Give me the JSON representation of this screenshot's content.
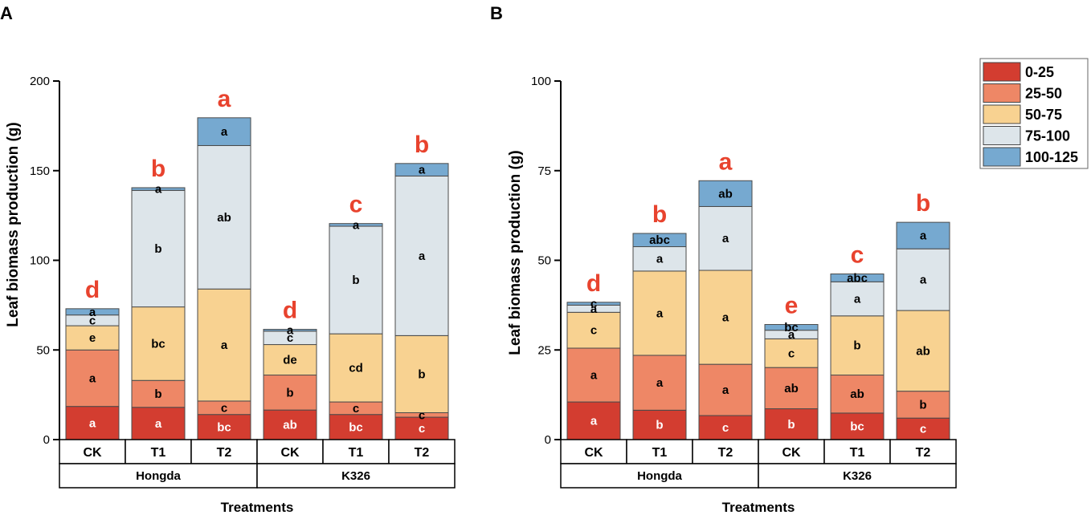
{
  "series_names": [
    "0-25",
    "25-50",
    "50-75",
    "75-100",
    "100-125"
  ],
  "series_colors": [
    "#d33d30",
    "#ee8766",
    "#f8d291",
    "#dde5ea",
    "#76a9d0"
  ],
  "label_colors": [
    "#ffffff",
    "#000000",
    "#000000",
    "#000000",
    "#000000"
  ],
  "total_letter_color": "#e8432e",
  "chart_data": [
    {
      "type": "bar",
      "stacked": true,
      "panel": "A",
      "ylabel": "Leaf biomass production (g)",
      "xlabel": "Treatments",
      "ylim": [
        0,
        200
      ],
      "yticks": [
        "0",
        "50",
        "100",
        "150",
        "200"
      ],
      "ytick_values": [
        0,
        50,
        100,
        150,
        200
      ],
      "categories": [
        "CK",
        "T1",
        "T2",
        "CK",
        "T1",
        "T2"
      ],
      "groups": [
        "Hongda",
        "K326"
      ],
      "series": [
        {
          "name": "0-25",
          "values": [
            18.5,
            18,
            14,
            16.5,
            14,
            12.5
          ],
          "labels": [
            "a",
            "a",
            "bc",
            "ab",
            "bc",
            "c"
          ]
        },
        {
          "name": "25-50",
          "values": [
            31.5,
            15,
            7.5,
            19.5,
            7,
            2.5
          ],
          "labels": [
            "a",
            "b",
            "c",
            "b",
            "c",
            "c"
          ]
        },
        {
          "name": "50-75",
          "values": [
            13.5,
            41,
            62.5,
            17,
            38,
            43
          ],
          "labels": [
            "e",
            "bc",
            "a",
            "de",
            "cd",
            "b"
          ]
        },
        {
          "name": "75-100",
          "values": [
            6,
            65,
            80,
            7.5,
            60,
            89
          ],
          "labels": [
            "c",
            "b",
            "ab",
            "c",
            "b",
            "a"
          ]
        },
        {
          "name": "100-125",
          "values": [
            3.5,
            1.5,
            15.5,
            1,
            1.5,
            7
          ],
          "labels": [
            "a",
            "a",
            "a",
            "a",
            "a",
            "a"
          ]
        }
      ],
      "total_letters": [
        "d",
        "b",
        "a",
        "d",
        "c",
        "b"
      ]
    },
    {
      "type": "bar",
      "stacked": true,
      "panel": "B",
      "ylabel": "Leaf biomass production (g)",
      "xlabel": "Treatments",
      "ylim": [
        0,
        100
      ],
      "yticks": [
        "0",
        "25",
        "50",
        "75",
        "100"
      ],
      "ytick_values": [
        0,
        25,
        50,
        75,
        100
      ],
      "categories": [
        "CK",
        "T1",
        "T2",
        "CK",
        "T1",
        "T2"
      ],
      "groups": [
        "Hongda",
        "K326"
      ],
      "series": [
        {
          "name": "0-25",
          "values": [
            10.5,
            8.2,
            6.7,
            8.6,
            7.4,
            6
          ],
          "labels": [
            "a",
            "b",
            "c",
            "b",
            "bc",
            "c"
          ]
        },
        {
          "name": "25-50",
          "values": [
            15,
            15.3,
            14.3,
            11.5,
            10.6,
            7.5
          ],
          "labels": [
            "a",
            "a",
            "a",
            "ab",
            "ab",
            "b"
          ]
        },
        {
          "name": "50-75",
          "values": [
            10,
            23.5,
            26.2,
            8,
            16.5,
            22.5
          ],
          "labels": [
            "c",
            "a",
            "a",
            "c",
            "b",
            "ab"
          ]
        },
        {
          "name": "75-100",
          "values": [
            2,
            6.8,
            17.8,
            2.4,
            9.5,
            17.2
          ],
          "labels": [
            "a",
            "a",
            "a",
            "a",
            "a",
            "a"
          ]
        },
        {
          "name": "100-125",
          "values": [
            0.8,
            3.7,
            7.2,
            1.6,
            2.2,
            7.4
          ],
          "labels": [
            "c",
            "abc",
            "ab",
            "bc",
            "abc",
            "a"
          ]
        }
      ],
      "total_letters": [
        "d",
        "b",
        "a",
        "e",
        "c",
        "b"
      ]
    }
  ]
}
